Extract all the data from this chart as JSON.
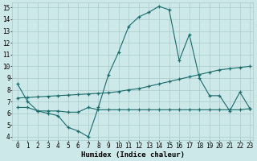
{
  "xlabel": "Humidex (Indice chaleur)",
  "bg_color": "#cce8e8",
  "grid_color": "#aacccc",
  "line_color": "#1a6b6b",
  "xlim_min": -0.5,
  "xlim_max": 23.3,
  "ylim_min": 3.7,
  "ylim_max": 15.4,
  "yticks": [
    4,
    5,
    6,
    7,
    8,
    9,
    10,
    11,
    12,
    13,
    14,
    15
  ],
  "xticks": [
    0,
    1,
    2,
    3,
    4,
    5,
    6,
    7,
    8,
    9,
    10,
    11,
    12,
    13,
    14,
    15,
    16,
    17,
    18,
    19,
    20,
    21,
    22,
    23
  ],
  "line1_x": [
    0,
    1,
    2,
    3,
    4,
    5,
    6,
    7,
    8,
    9,
    10,
    11,
    12,
    13,
    14,
    15,
    16,
    17,
    18,
    19,
    20,
    21,
    22,
    23
  ],
  "line1_y": [
    8.5,
    7.0,
    6.2,
    6.0,
    5.8,
    4.8,
    4.5,
    4.0,
    6.5,
    9.3,
    11.2,
    13.4,
    14.2,
    14.6,
    15.1,
    14.8,
    10.5,
    12.7,
    9.0,
    7.5,
    7.5,
    6.2,
    7.8,
    6.4
  ],
  "line2_x": [
    0,
    1,
    2,
    3,
    4,
    5,
    6,
    7,
    8,
    9,
    10,
    11,
    12,
    13,
    14,
    15,
    16,
    17,
    18,
    19,
    20,
    21,
    22,
    23
  ],
  "line2_y": [
    7.3,
    7.35,
    7.4,
    7.45,
    7.5,
    7.55,
    7.6,
    7.65,
    7.7,
    7.75,
    7.85,
    8.0,
    8.1,
    8.3,
    8.5,
    8.7,
    8.9,
    9.1,
    9.3,
    9.5,
    9.7,
    9.8,
    9.9,
    10.0
  ],
  "line3_x": [
    0,
    1,
    2,
    3,
    4,
    5,
    6,
    7,
    8,
    9,
    10,
    11,
    12,
    13,
    14,
    15,
    16,
    17,
    18,
    19,
    20,
    21,
    22,
    23
  ],
  "line3_y": [
    6.5,
    6.5,
    6.2,
    6.2,
    6.2,
    6.1,
    6.1,
    6.5,
    6.3,
    6.3,
    6.3,
    6.3,
    6.3,
    6.3,
    6.3,
    6.3,
    6.3,
    6.3,
    6.3,
    6.3,
    6.3,
    6.3,
    6.3,
    6.4
  ]
}
